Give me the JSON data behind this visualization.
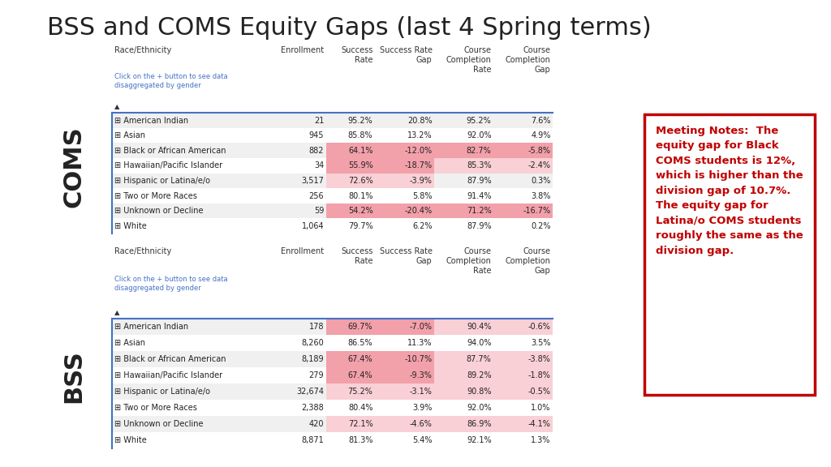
{
  "title": "BSS and COMS Equity Gaps (last 4 Spring terms)",
  "title_fontsize": 22,
  "coms_label": "COMS",
  "bss_label": "BSS",
  "subheader": "Click on the + button to see data\ndisaggregated by gender",
  "coms_data": [
    [
      "American Indian",
      21,
      "95.2%",
      "20.8%",
      "95.2%",
      "7.6%"
    ],
    [
      "Asian",
      945,
      "85.8%",
      "13.2%",
      "92.0%",
      "4.9%"
    ],
    [
      "Black or African American",
      882,
      "64.1%",
      "-12.0%",
      "82.7%",
      "-5.8%"
    ],
    [
      "Hawaiian/Pacific Islander",
      34,
      "55.9%",
      "-18.7%",
      "85.3%",
      "-2.4%"
    ],
    [
      "Hispanic or Latina/e/o",
      3517,
      "72.6%",
      "-3.9%",
      "87.9%",
      "0.3%"
    ],
    [
      "Two or More Races",
      256,
      "80.1%",
      "5.8%",
      "91.4%",
      "3.8%"
    ],
    [
      "Unknown or Decline",
      59,
      "54.2%",
      "-20.4%",
      "71.2%",
      "-16.7%"
    ],
    [
      "White",
      1064,
      "79.7%",
      "6.2%",
      "87.9%",
      "0.2%"
    ]
  ],
  "bss_data": [
    [
      "American Indian",
      178,
      "69.7%",
      "-7.0%",
      "90.4%",
      "-0.6%"
    ],
    [
      "Asian",
      8260,
      "86.5%",
      "11.3%",
      "94.0%",
      "3.5%"
    ],
    [
      "Black or African American",
      8189,
      "67.4%",
      "-10.7%",
      "87.7%",
      "-3.8%"
    ],
    [
      "Hawaiian/Pacific Islander",
      279,
      "67.4%",
      "-9.3%",
      "89.2%",
      "-1.8%"
    ],
    [
      "Hispanic or Latina/e/o",
      32674,
      "75.2%",
      "-3.1%",
      "90.8%",
      "-0.5%"
    ],
    [
      "Two or More Races",
      2388,
      "80.4%",
      "3.9%",
      "92.0%",
      "1.0%"
    ],
    [
      "Unknown or Decline",
      420,
      "72.1%",
      "-4.6%",
      "86.9%",
      "-4.1%"
    ],
    [
      "White",
      8871,
      "81.3%",
      "5.4%",
      "92.1%",
      "1.3%"
    ]
  ],
  "note_lines": [
    "Meeting Notes:  The",
    "equity gap for Black",
    "COMS students is 12%,",
    "which is higher than the",
    "division gap of 10.7%.",
    "The equity gap for",
    "Latina/o COMS students",
    "roughly the same as the",
    "division gap."
  ],
  "bg_color": "#ffffff",
  "header_text_color": "#333333",
  "subheader_color": "#4472C4",
  "row_alt_color": "#f0f0f0",
  "row_white_color": "#ffffff",
  "highlight_pink": "#f2a0aa",
  "highlight_light_pink": "#f9d0d5",
  "note_border_color": "#c00000",
  "note_text_color": "#c00000",
  "separator_color": "#4472C4",
  "label_color": "#222222"
}
